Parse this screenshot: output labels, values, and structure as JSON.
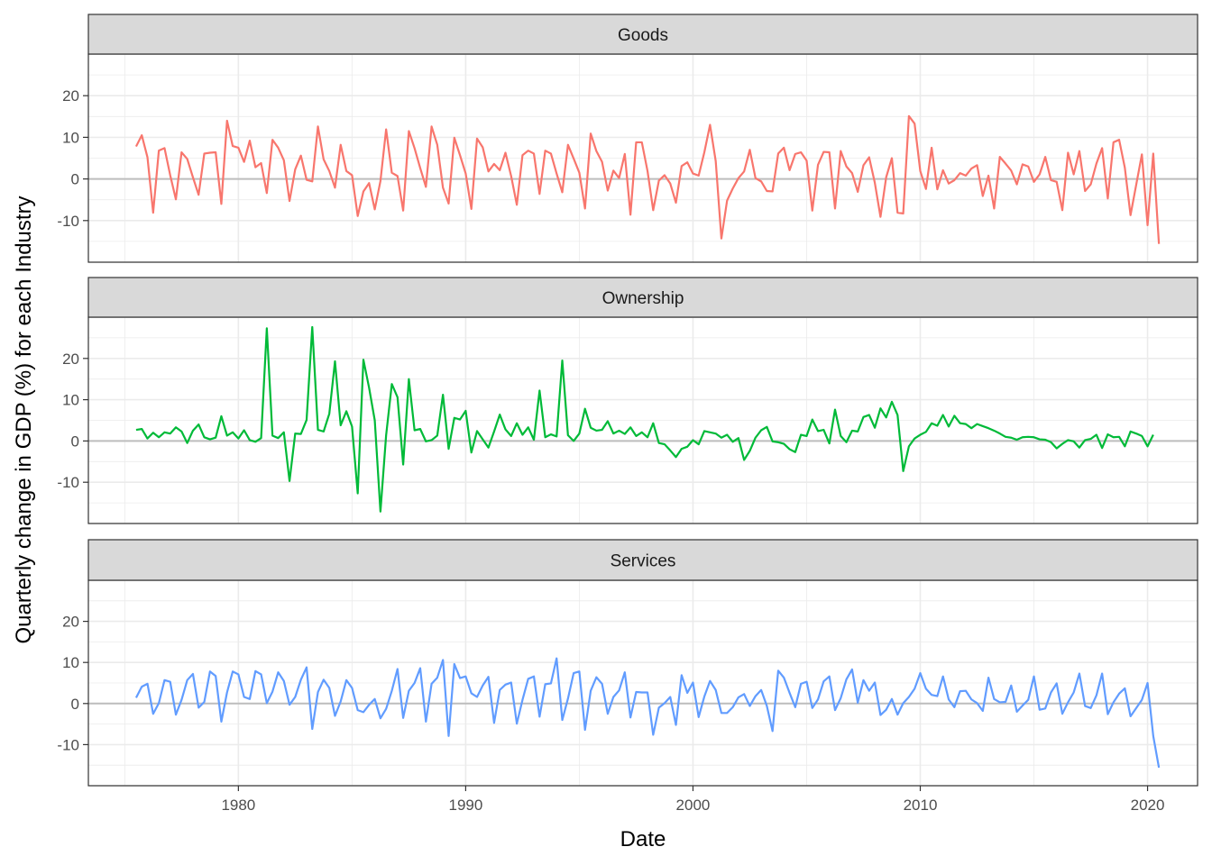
{
  "chart_data": {
    "type": "line",
    "layout": "facet-rows",
    "xlabel": "Date",
    "ylabel": "Quarterly change in GDP (%) for each Industry",
    "x_start": "1975-Q3",
    "x_step": "quarter",
    "xlim": [
      1973.4,
      2022.2
    ],
    "x_ticks": [
      1980,
      1990,
      2000,
      2010,
      2020
    ],
    "ylim": [
      -20,
      30
    ],
    "y_ticks": [
      -10,
      0,
      10,
      20
    ],
    "zero_line": true,
    "grid": true,
    "theme": "bw",
    "panels": [
      {
        "name": "Goods",
        "color": "#F8766D",
        "values": [
          7.8,
          10.5,
          5.2,
          -8.1,
          6.8,
          7.4,
          0.9,
          -4.9,
          6.4,
          4.8,
          0.4,
          -3.8,
          6.1,
          6.3,
          6.4,
          -6.0,
          14.0,
          7.9,
          7.5,
          4.1,
          9.2,
          2.8,
          3.8,
          -3.4,
          9.4,
          7.5,
          4.5,
          -5.3,
          2.3,
          5.6,
          -0.2,
          -0.6,
          12.6,
          4.7,
          1.9,
          -2.1,
          8.2,
          1.9,
          0.9,
          -8.9,
          -3.0,
          -1.0,
          -7.3,
          -0.5,
          11.9,
          1.5,
          0.7,
          -7.6,
          11.5,
          7.4,
          2.6,
          -1.9,
          12.6,
          8.2,
          -2.1,
          -5.9,
          9.9,
          5.7,
          1.3,
          -7.2,
          9.7,
          7.6,
          1.8,
          3.6,
          2.1,
          6.3,
          0.7,
          -6.2,
          5.7,
          6.8,
          6.1,
          -3.6,
          6.8,
          6.1,
          1.3,
          -3.2,
          8.2,
          4.9,
          1.5,
          -7.1,
          10.9,
          6.7,
          4.1,
          -2.8,
          2.0,
          0.2,
          6.0,
          -8.6,
          8.8,
          8.8,
          1.9,
          -7.5,
          -0.4,
          0.9,
          -1.1,
          -5.7,
          3.1,
          4.0,
          1.3,
          0.8,
          6.4,
          13.0,
          4.3,
          -14.3,
          -5.2,
          -2.3,
          0.2,
          1.8,
          7.0,
          0.2,
          -0.6,
          -2.9,
          -3.0,
          6.1,
          7.5,
          2.1,
          6.0,
          6.4,
          4.4,
          -7.6,
          3.4,
          6.5,
          6.4,
          -7.1,
          6.7,
          3.0,
          1.4,
          -3.1,
          3.3,
          5.2,
          -0.9,
          -9.1,
          0.4,
          5.0,
          -8.1,
          -8.3,
          15.1,
          13.3,
          1.9,
          -2.4,
          7.5,
          -2.5,
          2.1,
          -1.1,
          -0.3,
          1.4,
          0.8,
          2.5,
          3.3,
          -4.1,
          0.8,
          -7.1,
          5.3,
          3.7,
          2.0,
          -1.3,
          3.5,
          3.0,
          -0.7,
          1.1,
          5.3,
          -0.3,
          -0.7,
          -7.5,
          6.3,
          1.1,
          6.7,
          -2.9,
          -1.3,
          3.7,
          7.4,
          -4.7,
          8.8,
          9.4,
          2.7,
          -8.7,
          -1.4,
          5.9,
          -11.1,
          6.1,
          -15.6
        ]
      },
      {
        "name": "Ownership",
        "color": "#00BA38",
        "values": [
          2.7,
          2.9,
          0.6,
          2.0,
          0.9,
          2.1,
          1.8,
          3.3,
          2.3,
          -0.5,
          2.5,
          4.0,
          0.9,
          0.4,
          0.8,
          6.0,
          1.3,
          2.1,
          0.6,
          2.6,
          0.2,
          -0.2,
          0.7,
          27.3,
          1.3,
          0.7,
          2.1,
          -9.7,
          1.8,
          1.7,
          5.1,
          27.6,
          2.7,
          2.3,
          6.6,
          19.3,
          3.8,
          7.2,
          3.5,
          -12.7,
          19.7,
          12.9,
          5.0,
          -17.1,
          1.4,
          13.8,
          10.6,
          -5.7,
          15.0,
          2.6,
          2.9,
          -0.1,
          0.2,
          1.3,
          11.2,
          -1.9,
          5.6,
          5.2,
          7.3,
          -2.8,
          2.4,
          0.4,
          -1.6,
          2.3,
          6.4,
          2.8,
          1.2,
          4.3,
          1.5,
          3.3,
          0.3,
          12.2,
          0.9,
          1.6,
          1.1,
          19.5,
          1.4,
          0.0,
          1.8,
          7.8,
          3.2,
          2.5,
          2.7,
          4.8,
          1.8,
          2.5,
          1.7,
          3.3,
          1.2,
          2.1,
          0.9,
          4.3,
          -0.5,
          -0.8,
          -2.3,
          -3.9,
          -1.9,
          -1.4,
          0.2,
          -0.8,
          2.4,
          2.1,
          1.8,
          0.8,
          1.5,
          -0.2,
          0.7,
          -4.6,
          -2.4,
          0.8,
          2.6,
          3.4,
          -0.1,
          -0.3,
          -0.7,
          -2.0,
          -2.7,
          1.5,
          1.2,
          5.2,
          2.4,
          2.7,
          -0.6,
          7.6,
          1.2,
          -0.3,
          2.5,
          2.3,
          5.8,
          6.3,
          3.2,
          7.9,
          5.7,
          9.5,
          6.3,
          -7.3,
          -1.3,
          0.6,
          1.5,
          2.2,
          4.3,
          3.7,
          6.3,
          3.5,
          6.1,
          4.3,
          4.1,
          3.1,
          4.1,
          3.6,
          3.1,
          2.5,
          1.8,
          1.0,
          0.8,
          0.3,
          0.9,
          1.0,
          0.9,
          0.4,
          0.3,
          -0.3,
          -1.8,
          -0.7,
          0.2,
          -0.1,
          -1.6,
          0.2,
          0.5,
          1.5,
          -1.7,
          1.6,
          0.9,
          1.0,
          -1.3,
          2.3,
          1.8,
          1.2,
          -1.3,
          1.5
        ]
      },
      {
        "name": "Services",
        "color": "#619CFF",
        "values": [
          1.4,
          4.1,
          4.8,
          -2.5,
          0.1,
          5.7,
          5.3,
          -2.7,
          0.9,
          5.7,
          7.2,
          -1.0,
          0.4,
          7.8,
          6.7,
          -4.4,
          2.7,
          7.8,
          7.1,
          1.6,
          1.1,
          7.9,
          7.1,
          0.1,
          2.9,
          7.6,
          5.5,
          -0.3,
          1.6,
          5.8,
          8.8,
          -6.2,
          2.8,
          5.8,
          3.8,
          -3.0,
          0.5,
          5.7,
          3.8,
          -1.6,
          -2.1,
          -0.3,
          1.1,
          -3.6,
          -1.3,
          3.1,
          8.4,
          -3.5,
          3.1,
          5.0,
          8.6,
          -4.4,
          4.8,
          6.3,
          10.6,
          -7.9,
          9.6,
          6.2,
          6.6,
          2.5,
          1.6,
          4.4,
          6.5,
          -4.7,
          3.3,
          4.6,
          5.1,
          -4.9,
          0.9,
          6.0,
          6.6,
          -3.2,
          4.7,
          4.9,
          11.0,
          -4.0,
          1.2,
          7.4,
          7.8,
          -6.4,
          3.1,
          6.4,
          4.8,
          -2.5,
          1.6,
          3.2,
          7.6,
          -3.4,
          2.8,
          2.7,
          2.7,
          -7.6,
          -1.0,
          0.1,
          1.6,
          -5.2,
          6.9,
          2.6,
          5.1,
          -3.3,
          1.7,
          5.5,
          3.3,
          -2.3,
          -2.3,
          -0.9,
          1.5,
          2.3,
          -0.6,
          1.8,
          3.3,
          -0.6,
          -6.7,
          8.0,
          6.3,
          2.6,
          -0.9,
          4.8,
          5.3,
          -1.1,
          1.0,
          5.4,
          6.6,
          -1.6,
          1.3,
          5.9,
          8.3,
          0.2,
          5.7,
          3.1,
          5.1,
          -2.8,
          -1.5,
          1.1,
          -2.7,
          0.1,
          1.6,
          3.6,
          7.4,
          3.6,
          2.1,
          1.8,
          6.6,
          1.0,
          -0.9,
          3.0,
          3.1,
          1.0,
          0.1,
          -1.8,
          6.3,
          1.1,
          0.3,
          0.4,
          4.4,
          -2.0,
          -0.5,
          0.9,
          6.6,
          -1.5,
          -1.2,
          2.7,
          4.9,
          -2.5,
          0.3,
          2.7,
          7.3,
          -0.6,
          -1.1,
          2.0,
          7.3,
          -2.6,
          0.3,
          2.4,
          3.7,
          -3.1,
          -1.1,
          0.9,
          5.0,
          -7.9,
          -15.6
        ]
      }
    ]
  }
}
